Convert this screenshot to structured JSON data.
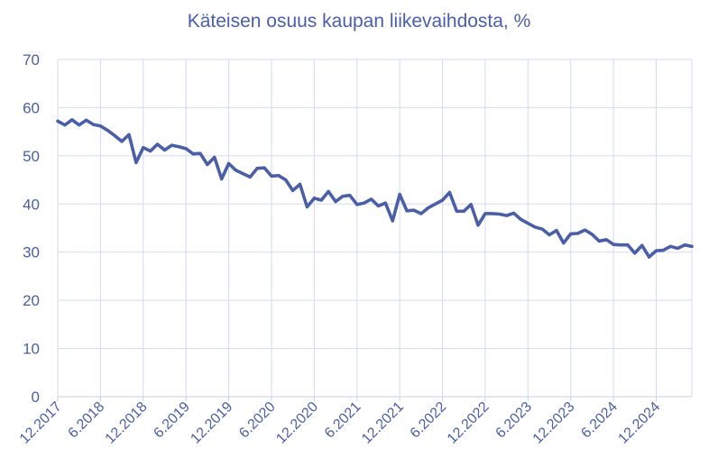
{
  "chart_data": {
    "type": "line",
    "title": "Käteisen osuus kaupan liikevaihdosta, %",
    "xlabel": "",
    "ylabel": "",
    "ylim": [
      0,
      70
    ],
    "yticks": [
      0,
      10,
      20,
      30,
      40,
      50,
      60,
      70
    ],
    "x_tick_labels": [
      "12.2017",
      "6.2018",
      "12.2018",
      "6.2019",
      "12.2019",
      "6.2020",
      "12.2020",
      "6.2021",
      "12.2021",
      "6.2022",
      "12.2022",
      "6.2023",
      "12.2023",
      "6.2024",
      "12.2024"
    ],
    "grid": true,
    "legend": "none",
    "colors": {
      "line": "#4a5fa8",
      "text": "#4a5fa8",
      "grid": "#d5dbee"
    },
    "series": [
      {
        "x": [
          "12.2017",
          "1.2018",
          "2.2018",
          "3.2018",
          "4.2018",
          "5.2018",
          "6.2018",
          "7.2018",
          "8.2018",
          "9.2018",
          "10.2018",
          "11.2018",
          "12.2018",
          "1.2019",
          "2.2019",
          "3.2019",
          "4.2019",
          "5.2019",
          "6.2019",
          "7.2019",
          "8.2019",
          "9.2019",
          "10.2019",
          "11.2019",
          "12.2019",
          "1.2020",
          "2.2020",
          "3.2020",
          "4.2020",
          "5.2020",
          "6.2020",
          "7.2020",
          "8.2020",
          "9.2020",
          "10.2020",
          "11.2020",
          "12.2020",
          "1.2021",
          "2.2021",
          "3.2021",
          "4.2021",
          "5.2021",
          "6.2021",
          "7.2021",
          "8.2021",
          "9.2021",
          "10.2021",
          "11.2021",
          "12.2021",
          "1.2022",
          "2.2022",
          "3.2022",
          "4.2022",
          "5.2022",
          "6.2022",
          "7.2022",
          "8.2022",
          "9.2022",
          "10.2022",
          "11.2022",
          "12.2022",
          "1.2023",
          "2.2023",
          "3.2023",
          "4.2023",
          "5.2023",
          "6.2023",
          "7.2023",
          "8.2023",
          "9.2023",
          "10.2023",
          "11.2023",
          "12.2023",
          "1.2024",
          "2.2024",
          "3.2024",
          "4.2024",
          "5.2024",
          "6.2024",
          "7.2024",
          "8.2024",
          "9.2024",
          "10.2024",
          "11.2024",
          "12.2024",
          "1.2025",
          "2.2025",
          "3.2025",
          "4.2025",
          "5.2025"
        ],
        "values": [
          57.2,
          56.4,
          57.5,
          56.4,
          57.4,
          56.5,
          56.2,
          55.3,
          54.2,
          53.0,
          54.4,
          48.6,
          51.7,
          51.0,
          52.4,
          51.2,
          52.2,
          51.9,
          51.5,
          50.4,
          50.5,
          48.2,
          49.7,
          45.2,
          48.4,
          47.0,
          46.3,
          45.6,
          47.4,
          47.5,
          45.8,
          45.9,
          45.0,
          42.8,
          44.1,
          39.4,
          41.2,
          40.8,
          42.6,
          40.5,
          41.6,
          41.8,
          39.9,
          40.2,
          41.0,
          39.6,
          40.2,
          36.5,
          42.0,
          38.6,
          38.7,
          38.0,
          39.2,
          40.0,
          40.8,
          42.4,
          38.5,
          38.5,
          39.9,
          35.6,
          38.0,
          38.0,
          37.9,
          37.6,
          38.1,
          36.8,
          36.0,
          35.2,
          34.8,
          33.6,
          34.5,
          31.9,
          33.8,
          33.9,
          34.6,
          33.7,
          32.3,
          32.6,
          31.6,
          31.5,
          31.5,
          29.8,
          31.4,
          29.0,
          30.3,
          30.4,
          31.2,
          30.8,
          31.5,
          31.2
        ]
      }
    ]
  }
}
